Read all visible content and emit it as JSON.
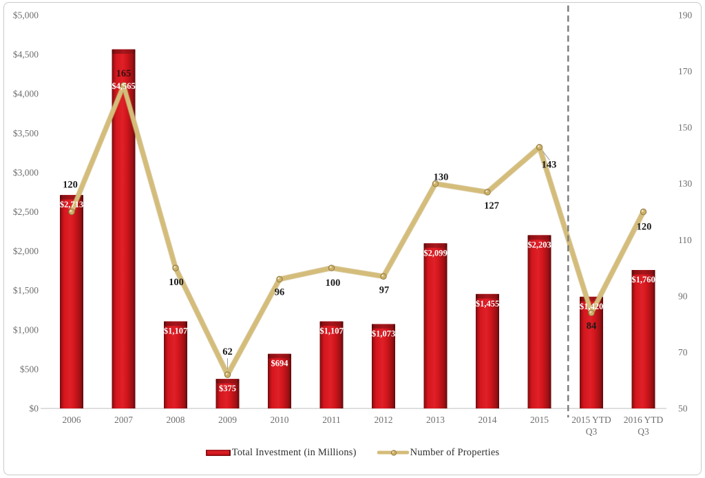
{
  "frame": {
    "border_color": "#c9c9c9",
    "background": "#ffffff"
  },
  "chart_data": {
    "type": "combo-bar-line",
    "title": "",
    "categories": [
      "2006",
      "2007",
      "2008",
      "2009",
      "2010",
      "2011",
      "2012",
      "2013",
      "2014",
      "2015",
      "2015 YTD\nQ3",
      "2016 YTD\nQ3"
    ],
    "series": [
      {
        "name": "Total Investment (in Millions)",
        "type": "bar",
        "axis": "left",
        "color": "#d4161d",
        "values": [
          2713,
          4565,
          1107,
          375,
          694,
          1107,
          1073,
          2099,
          1455,
          2203,
          1420,
          1760
        ],
        "labels": [
          "$2,713",
          "$4,565",
          "$1,107",
          "$375",
          "$694",
          "$1,107",
          "$1,073",
          "$2,099",
          "$1,455",
          "$2,203",
          "$1,420",
          "$1,760"
        ]
      },
      {
        "name": "Number of Properties",
        "type": "line",
        "axis": "right",
        "color": "#d4bc7a",
        "values": [
          120,
          165,
          100,
          62,
          96,
          100,
          97,
          130,
          127,
          143,
          84,
          120
        ],
        "labels": [
          "120",
          "165",
          "100",
          "62",
          "96",
          "100",
          "97",
          "130",
          "127",
          "143",
          "84",
          "120"
        ]
      }
    ],
    "left_axis": {
      "min": 0,
      "max": 5000,
      "step": 500,
      "tick_labels": [
        "$0",
        "$500",
        "$1,000",
        "$1,500",
        "$2,000",
        "$2,500",
        "$3,000",
        "$3,500",
        "$4,000",
        "$4,500",
        "$5,000"
      ]
    },
    "right_axis": {
      "min": 50,
      "max": 190,
      "step": 20,
      "tick_labels": [
        "50",
        "70",
        "90",
        "110",
        "130",
        "150",
        "170",
        "190"
      ]
    },
    "separator_after_category": "2015",
    "grid": false,
    "legend_position": "bottom",
    "colors": {
      "bar_bright": "#e02028",
      "bar_mid": "#d4161d",
      "bar_dark": "#6f0b0d",
      "bar_cap": "#a6161b",
      "line_gold": "#d4bc7a",
      "line_gold_dark": "#c0a257",
      "marker_fill": "#cdb168",
      "marker_stroke": "#8f7a42",
      "axis_text": "#6e6e6e",
      "bar_label_text": "#ffffff",
      "point_label_text": "#1a1a1a",
      "point_label_on_bar": "#33100f",
      "axis_line": "#c9c9c9",
      "dashed_line": "#7a7a7a"
    }
  },
  "legend": {
    "items": [
      {
        "label": "Total Investment (in Millions)",
        "swatch": "red-bar"
      },
      {
        "label": "Number of Properties",
        "swatch": "gold-line"
      }
    ]
  }
}
